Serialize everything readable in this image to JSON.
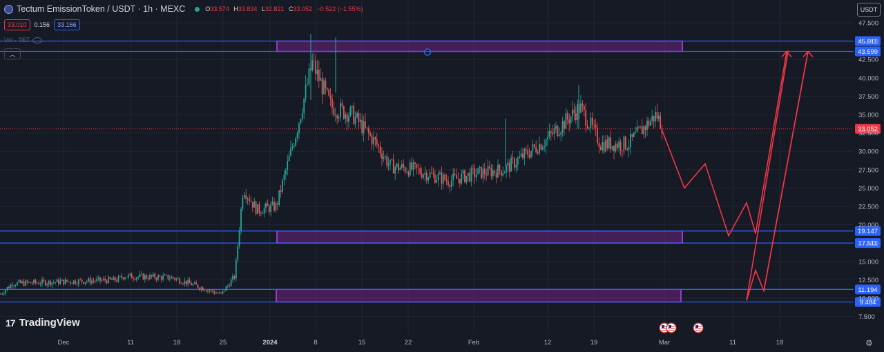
{
  "header": {
    "title": "Tectum EmissionToken / USDT · 1h · MEXC",
    "ohlc": [
      {
        "label": "O",
        "value": "33.574"
      },
      {
        "label": "H",
        "value": "33.834"
      },
      {
        "label": "L",
        "value": "32.821"
      },
      {
        "label": "C",
        "value": "33.052"
      }
    ],
    "change": "−0.522 (−1.55%)",
    "bid": "33.010",
    "spread": "0.156",
    "ask": "33.166",
    "volume_label": "Vol · TET",
    "currency_button": "USDT"
  },
  "brand": {
    "mark": "17",
    "name": "TradingView"
  },
  "colors": {
    "background": "#161a25",
    "up": "#26a69a",
    "down": "#ef5350",
    "line": "#2962ff",
    "zone": "#9c27b0",
    "projection": "#f23645",
    "grid": "#232632"
  },
  "chart_data": {
    "type": "candlestick",
    "title": "Tectum EmissionToken / USDT",
    "interval": "1h",
    "exchange": "MEXC",
    "x_ticks": [
      "Dec",
      "11",
      "18",
      "25",
      "2024",
      "8",
      "15",
      "22",
      "Feb",
      "12",
      "19",
      "Mar",
      "11",
      "18"
    ],
    "x_tick_bold": [
      "2024"
    ],
    "y_ticks": [
      "47.500",
      "45.000",
      "42.500",
      "40.000",
      "37.500",
      "35.000",
      "32.500",
      "30.000",
      "27.500",
      "25.000",
      "22.500",
      "20.000",
      "17.500",
      "15.000",
      "12.500",
      "10.000",
      "7.500"
    ],
    "ylim": [
      6.5,
      48.5
    ],
    "last_price": "33.052",
    "horizontal_levels": [
      "45.011",
      "43.599",
      "19.147",
      "17.511",
      "11.194",
      "9.484"
    ],
    "zones": [
      {
        "from": 43.599,
        "to": 45.011
      },
      {
        "from": 17.511,
        "to": 19.147
      },
      {
        "from": 9.484,
        "to": 11.194
      }
    ],
    "price_path": [
      [
        "Nov 27",
        10.5
      ],
      [
        "Dec 1",
        12.0
      ],
      [
        "Dec 11",
        12.5
      ],
      [
        "Dec 12",
        13.0
      ],
      [
        "Dec 18",
        12.8
      ],
      [
        "Dec 25",
        10.5
      ],
      [
        "Dec 27",
        13.0
      ],
      [
        "Dec 28",
        25.0
      ],
      [
        "Dec 31",
        22.0
      ],
      [
        "2024-01-03",
        22.5
      ],
      [
        "Jan 5",
        33.0
      ],
      [
        "Jan 8",
        42.0
      ],
      [
        "Jan 10",
        36.0
      ],
      [
        "Jan 13",
        35.0
      ],
      [
        "Jan 17",
        31.0
      ],
      [
        "Jan 20",
        28.0
      ],
      [
        "Jan 24",
        27.5
      ],
      [
        "Jan 30",
        26.0
      ],
      [
        "Feb 4",
        27.0
      ],
      [
        "Feb 9",
        27.5
      ],
      [
        "Feb 14",
        31.5
      ],
      [
        "Feb 16",
        36.0
      ],
      [
        "Feb 18",
        31.0
      ],
      [
        "Feb 23",
        31.0
      ],
      [
        "Feb 26",
        35.0
      ],
      [
        "Feb 27",
        33.052
      ]
    ],
    "projection_path": [
      [
        "Feb 27",
        33.0
      ],
      [
        "Mar 2",
        25.0
      ],
      [
        "Mar 6",
        28.3
      ],
      [
        "Mar 11",
        18.5
      ],
      [
        "Mar 12",
        23.0
      ],
      [
        "Mar 14",
        18.8
      ],
      [
        "Mar 16",
        43.5
      ],
      [
        "Mar 17",
        43.6
      ],
      [
        "Mar 19",
        9.7
      ],
      [
        "Mar 21",
        13.8
      ],
      [
        "Mar 22",
        11.0
      ],
      [
        "Mar 25",
        43.6
      ]
    ],
    "event_markers": 3
  }
}
